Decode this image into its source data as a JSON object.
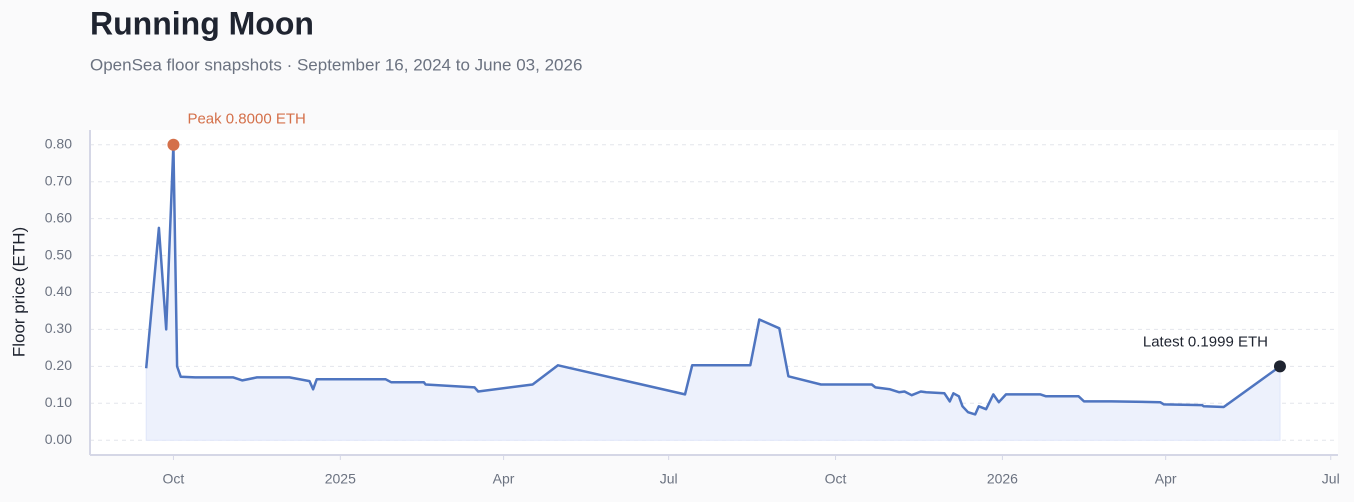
{
  "chart_data": {
    "type": "line",
    "title": "Running Moon",
    "subtitle": "OpenSea floor snapshots · September 16, 2024 to June 03, 2026",
    "y_label": "Floor price (ETH)",
    "peak_annotation": "Peak 0.8000 ETH",
    "latest_annotation": "Latest 0.1999 ETH",
    "x": [
      "2024-09-16",
      "2024-09-23",
      "2024-09-27",
      "2024-10-01",
      "2024-10-03",
      "2024-10-05",
      "2024-10-13",
      "2024-11-03",
      "2024-11-08",
      "2024-11-16",
      "2024-12-04",
      "2024-12-15",
      "2024-12-17",
      "2024-12-19",
      "2025-01-26",
      "2025-01-29",
      "2025-02-16",
      "2025-02-17",
      "2025-03-16",
      "2025-03-18",
      "2025-04-17",
      "2025-05-01",
      "2025-07-10",
      "2025-07-14",
      "2025-08-15",
      "2025-08-20",
      "2025-08-31",
      "2025-09-05",
      "2025-09-23",
      "2025-10-21",
      "2025-10-23",
      "2025-10-31",
      "2025-11-05",
      "2025-11-08",
      "2025-11-12",
      "2025-11-17",
      "2025-11-20",
      "2025-11-30",
      "2025-12-03",
      "2025-12-05",
      "2025-12-08",
      "2025-12-10",
      "2025-12-13",
      "2025-12-17",
      "2025-12-19",
      "2025-12-23",
      "2025-12-27",
      "2025-12-30",
      "2026-01-03",
      "2026-01-22",
      "2026-01-25",
      "2026-02-12",
      "2026-02-15",
      "2026-03-02",
      "2026-03-29",
      "2026-03-31",
      "2026-04-21",
      "2026-04-22",
      "2026-05-03",
      "2026-06-03"
    ],
    "series": [
      {
        "name": "Floor price",
        "color": "#4f75c0",
        "values": [
          0.195,
          0.575,
          0.3,
          0.8,
          0.2,
          0.172,
          0.17,
          0.17,
          0.162,
          0.17,
          0.17,
          0.16,
          0.138,
          0.165,
          0.165,
          0.157,
          0.157,
          0.151,
          0.143,
          0.132,
          0.151,
          0.203,
          0.124,
          0.203,
          0.203,
          0.327,
          0.303,
          0.173,
          0.151,
          0.151,
          0.143,
          0.138,
          0.13,
          0.132,
          0.122,
          0.132,
          0.13,
          0.127,
          0.105,
          0.127,
          0.119,
          0.092,
          0.076,
          0.07,
          0.092,
          0.084,
          0.124,
          0.103,
          0.124,
          0.124,
          0.119,
          0.119,
          0.105,
          0.105,
          0.103,
          0.097,
          0.095,
          0.092,
          0.09,
          0.1999
        ]
      }
    ],
    "area_color": "#edf1fc",
    "peak_color": "#d4704a",
    "latest_color": "#1f2430",
    "xlim": [
      "2024-08-16",
      "2026-07-05"
    ],
    "xticks": [
      {
        "value": "2024-10-01",
        "label": "Oct"
      },
      {
        "value": "2025-01-01",
        "label": "2025"
      },
      {
        "value": "2025-04-01",
        "label": "Apr"
      },
      {
        "value": "2025-07-01",
        "label": "Jul"
      },
      {
        "value": "2025-10-01",
        "label": "Oct"
      },
      {
        "value": "2026-01-01",
        "label": "2026"
      },
      {
        "value": "2026-04-01",
        "label": "Apr"
      },
      {
        "value": "2026-07-01",
        "label": "Jul"
      }
    ],
    "ylim": [
      -0.04,
      0.84
    ],
    "yticks": [
      {
        "value": 0,
        "label": "0.00"
      },
      {
        "value": 0.1,
        "label": "0.10"
      },
      {
        "value": 0.2,
        "label": "0.20"
      },
      {
        "value": 0.3,
        "label": "0.30"
      },
      {
        "value": 0.4,
        "label": "0.40"
      },
      {
        "value": 0.5,
        "label": "0.50"
      },
      {
        "value": 0.6,
        "label": "0.60"
      },
      {
        "value": 0.7,
        "label": "0.70"
      },
      {
        "value": 0.8,
        "label": "0.80"
      }
    ],
    "grid": true
  }
}
